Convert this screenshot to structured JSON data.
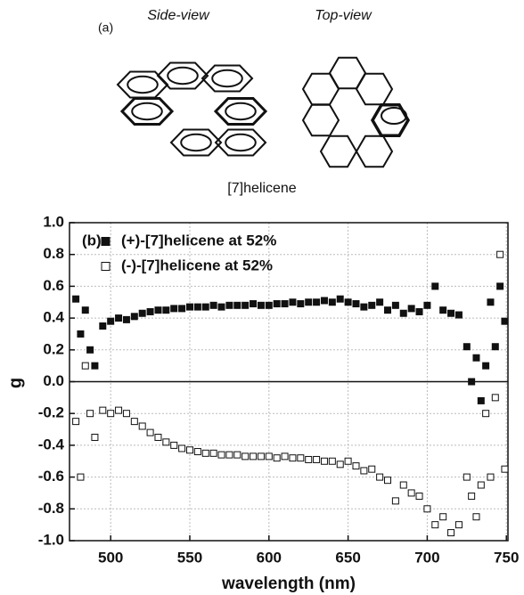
{
  "figure_a": {
    "label": "(a)",
    "side_view": "Side-view",
    "top_view": "Top-view",
    "caption": "[7]helicene"
  },
  "chart_data": {
    "type": "scatter",
    "panel_label": "(b)",
    "x_label": "wavelength (nm)",
    "y_label": "g",
    "xlim": [
      474,
      751
    ],
    "ylim": [
      -1,
      1
    ],
    "grid": true,
    "legend": "top-left",
    "xticks": [
      500,
      550,
      600,
      650,
      700,
      750
    ],
    "yticks": [
      {
        "value": -1,
        "label": "-1.0"
      },
      -0.8,
      -0.6,
      -0.4,
      -0.2,
      {
        "value": 0,
        "label": "0.0"
      },
      0.2,
      0.4,
      0.6,
      0.8,
      {
        "value": 1,
        "label": "1.0"
      }
    ],
    "x": [
      478,
      481,
      484,
      487,
      490,
      495,
      500,
      505,
      510,
      515,
      520,
      525,
      530,
      535,
      540,
      545,
      550,
      555,
      560,
      565,
      570,
      575,
      580,
      585,
      590,
      595,
      600,
      605,
      610,
      615,
      620,
      625,
      630,
      635,
      640,
      645,
      650,
      655,
      660,
      665,
      670,
      675,
      680,
      685,
      690,
      695,
      700,
      705,
      710,
      715,
      720,
      725,
      728,
      731,
      734,
      737,
      740,
      743,
      746,
      749
    ],
    "series": [
      {
        "name": "(+)-[7]helicene at 52%",
        "color": "#111111",
        "marker": "filled",
        "values": [
          0.52,
          0.3,
          0.45,
          0.2,
          0.1,
          0.35,
          0.38,
          0.4,
          0.39,
          0.41,
          0.43,
          0.44,
          0.45,
          0.45,
          0.46,
          0.46,
          0.47,
          0.47,
          0.47,
          0.48,
          0.47,
          0.48,
          0.48,
          0.48,
          0.49,
          0.48,
          0.48,
          0.49,
          0.49,
          0.5,
          0.49,
          0.5,
          0.5,
          0.51,
          0.5,
          0.52,
          0.5,
          0.49,
          0.47,
          0.48,
          0.5,
          0.45,
          0.48,
          0.43,
          0.46,
          0.44,
          0.48,
          0.6,
          0.45,
          0.43,
          0.42,
          0.22,
          0.0,
          0.15,
          -0.12,
          0.1,
          0.5,
          0.22,
          0.6,
          0.38
        ]
      },
      {
        "name": "(-)-[7]helicene at 52%",
        "color": "#111111",
        "marker": "open",
        "values": [
          -0.25,
          -0.6,
          0.1,
          -0.2,
          -0.35,
          -0.18,
          -0.2,
          -0.18,
          -0.2,
          -0.25,
          -0.28,
          -0.32,
          -0.35,
          -0.38,
          -0.4,
          -0.42,
          -0.43,
          -0.44,
          -0.45,
          -0.45,
          -0.46,
          -0.46,
          -0.46,
          -0.47,
          -0.47,
          -0.47,
          -0.47,
          -0.48,
          -0.47,
          -0.48,
          -0.48,
          -0.49,
          -0.49,
          -0.5,
          -0.5,
          -0.52,
          -0.5,
          -0.53,
          -0.56,
          -0.55,
          -0.6,
          -0.62,
          -0.75,
          -0.65,
          -0.7,
          -0.72,
          -0.8,
          -0.9,
          -0.85,
          -0.95,
          -0.9,
          -0.6,
          -0.72,
          -0.85,
          -0.65,
          -0.2,
          -0.6,
          -0.1,
          0.8,
          -0.55
        ]
      }
    ]
  }
}
